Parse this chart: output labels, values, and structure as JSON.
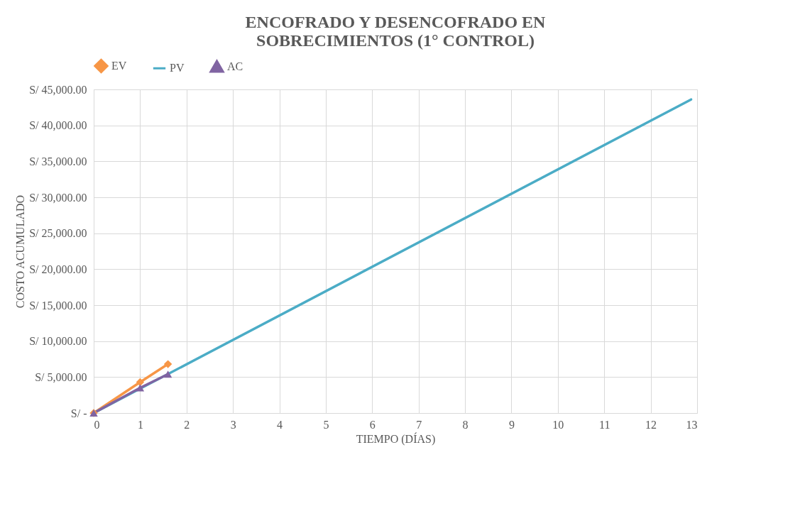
{
  "chart_data": {
    "type": "line",
    "title": "ENCOFRADO Y DESENCOFRADO EN SOBRECIMIENTOS (1° CONTROL)",
    "xlabel": "TIEMPO (DÍAS)",
    "ylabel": "COSTO ACUMULADO",
    "series": [
      {
        "name": "EV",
        "color": "#f79646",
        "marker": "diamond",
        "x": [
          0,
          1,
          1.6
        ],
        "values": [
          0,
          4300,
          6800
        ]
      },
      {
        "name": "PV",
        "color": "#4bacc6",
        "marker": "none",
        "x": [
          0,
          12.87
        ],
        "values": [
          0,
          43600
        ]
      },
      {
        "name": "AC",
        "color": "#8064a2",
        "marker": "triangle",
        "x": [
          0,
          1,
          1.6
        ],
        "values": [
          0,
          3500,
          5400
        ]
      }
    ],
    "xlim": [
      0,
      13
    ],
    "xticks": [
      0,
      1,
      2,
      3,
      4,
      5,
      6,
      7,
      8,
      9,
      10,
      11,
      12,
      13
    ],
    "ylim": [
      0,
      45000
    ],
    "yticks": [
      {
        "value": 0,
        "label": "S/ -"
      },
      {
        "value": 5000,
        "label": "S/ 5,000.00"
      },
      {
        "value": 10000,
        "label": "S/ 10,000.00"
      },
      {
        "value": 15000,
        "label": "S/ 15,000.00"
      },
      {
        "value": 20000,
        "label": "S/ 20,000.00"
      },
      {
        "value": 25000,
        "label": "S/ 25,000.00"
      },
      {
        "value": 30000,
        "label": "S/ 30,000.00"
      },
      {
        "value": 35000,
        "label": "S/ 35,000.00"
      },
      {
        "value": 40000,
        "label": "S/ 40,000.00"
      },
      {
        "value": 45000,
        "label": "S/ 45,000.00"
      }
    ],
    "grid": true,
    "legend": "top",
    "line_style": "solid"
  }
}
